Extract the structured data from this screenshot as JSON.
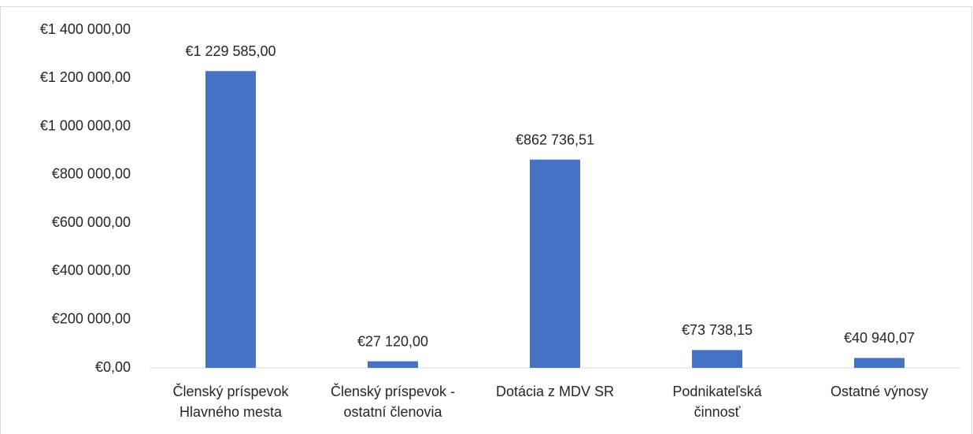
{
  "chart_data": {
    "type": "bar",
    "categories": [
      "Členský príspevok Hlavného mesta",
      "Členský príspevok - ostatní členovia",
      "Dotácia z MDV SR",
      "Podnikateľská činnosť",
      "Ostatné výnosy"
    ],
    "values": [
      1229585,
      27120,
      862736.51,
      73738.15,
      40940.07
    ],
    "value_labels": [
      "€1 229 585,00",
      "€27 120,00",
      "€862 736,51",
      "€73 738,15",
      "€40 940,07"
    ],
    "color": "#4472c4",
    "ylim": [
      0,
      1400000
    ],
    "yticks": [
      {
        "value": 0,
        "label": "€0,00"
      },
      {
        "value": 200000,
        "label": "€200 000,00"
      },
      {
        "value": 400000,
        "label": "€400 000,00"
      },
      {
        "value": 600000,
        "label": "€600 000,00"
      },
      {
        "value": 800000,
        "label": "€800 000,00"
      },
      {
        "value": 1000000,
        "label": "€1 000 000,00"
      },
      {
        "value": 1200000,
        "label": "€1 200 000,00"
      },
      {
        "value": 1400000,
        "label": "€1 400 000,00"
      }
    ],
    "grid": false
  }
}
